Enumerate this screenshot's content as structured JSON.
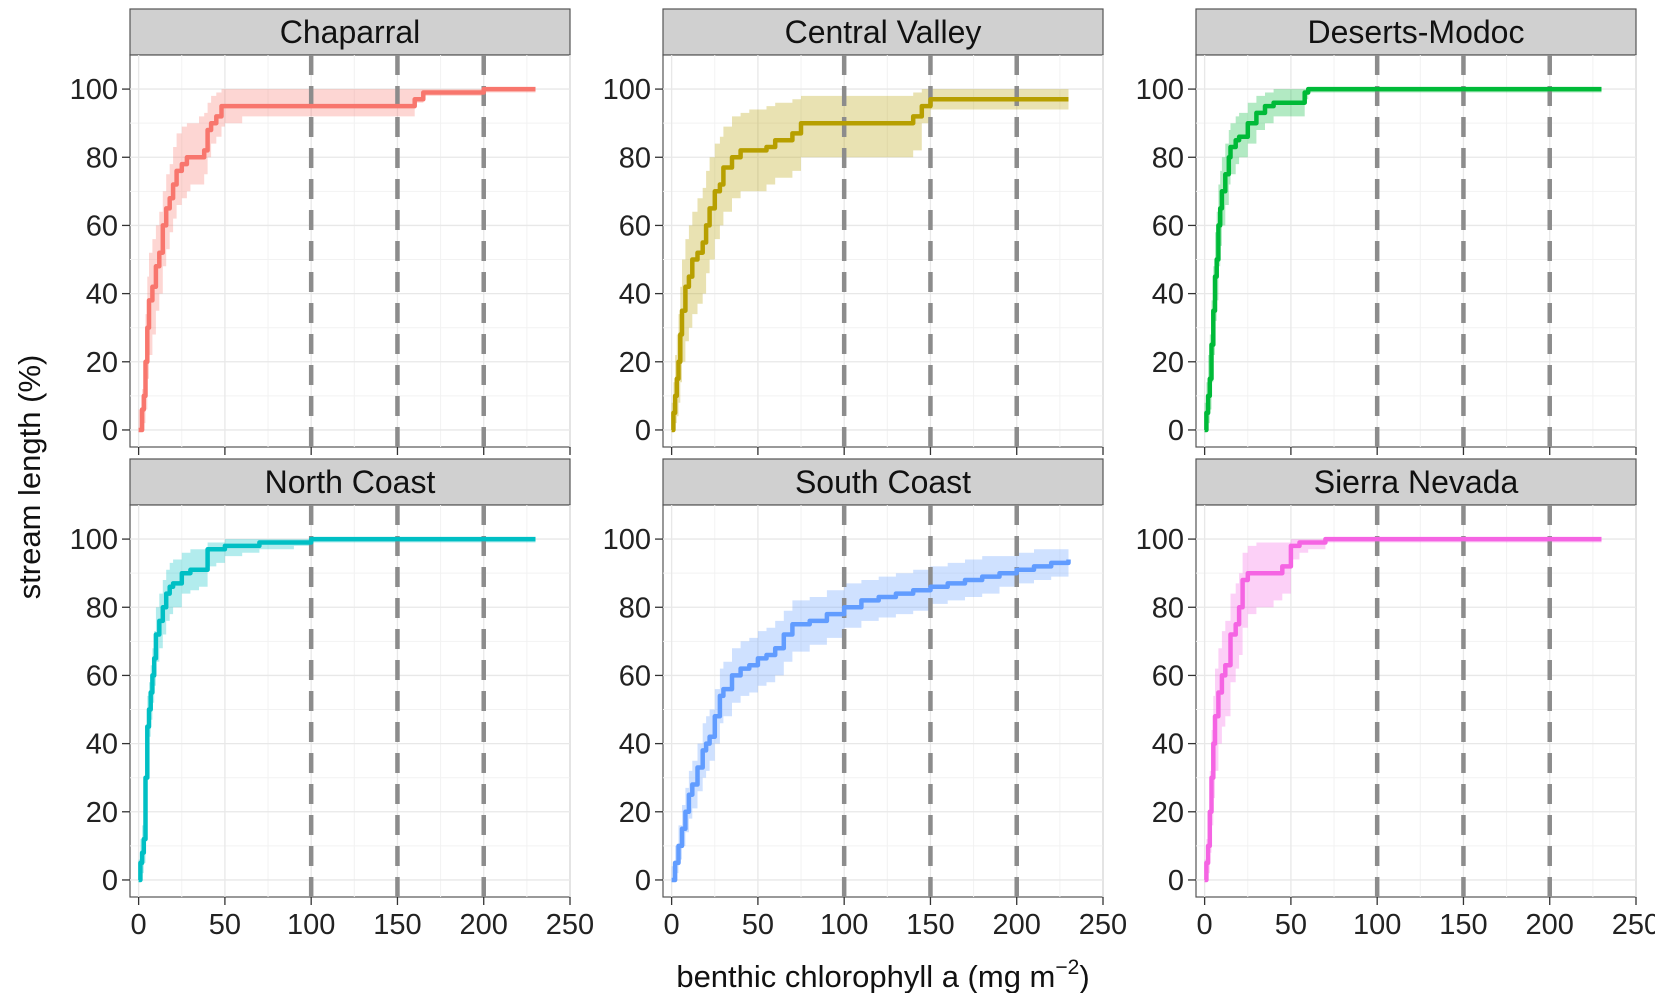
{
  "chart_data": {
    "type": "line",
    "layout": "facet grid, 2 rows x 3 columns, shared axes",
    "ylabel": "stream length (%)",
    "xlabel": {
      "text": "benthic chlorophyll a (mg m",
      "superscript": "−2",
      "suffix": ")"
    },
    "xlim": [
      -5,
      250
    ],
    "ylim": [
      -5,
      110
    ],
    "xticks": [
      0,
      50,
      100,
      150,
      200,
      250
    ],
    "yticks": [
      0,
      20,
      40,
      60,
      80,
      100
    ],
    "reference_lines": [
      100,
      150,
      200
    ],
    "reference_line_color": "#8c8c8c",
    "grid": true,
    "panel_background": "#ffffff",
    "gridline_color": "#e8e8e8",
    "strip_color": "#d0d0d0",
    "band": "shaded confidence band around each curve",
    "panels": [
      {
        "name": "Chaparral",
        "color": "#f8766d",
        "x": [
          0,
          2,
          3,
          4,
          5,
          6,
          8,
          10,
          12,
          14,
          16,
          18,
          20,
          22,
          25,
          28,
          30,
          35,
          38,
          40,
          42,
          45,
          48,
          50,
          60,
          80,
          100,
          120,
          150,
          160,
          165,
          180,
          200,
          230
        ],
        "y": [
          0,
          6,
          10,
          20,
          30,
          38,
          42,
          48,
          52,
          60,
          65,
          68,
          72,
          76,
          78,
          80,
          80,
          80,
          82,
          88,
          90,
          92,
          95,
          95,
          95,
          95,
          95,
          95,
          95,
          97,
          99,
          99,
          100,
          100
        ],
        "lower": [
          0,
          0,
          2,
          6,
          15,
          22,
          28,
          35,
          40,
          48,
          53,
          58,
          62,
          66,
          68,
          70,
          72,
          72,
          75,
          80,
          84,
          86,
          89,
          90,
          92,
          92,
          92,
          92,
          92,
          96,
          98,
          98,
          99,
          99
        ],
        "upper": [
          6,
          12,
          20,
          34,
          45,
          52,
          56,
          60,
          64,
          70,
          75,
          78,
          83,
          87,
          89,
          90,
          90,
          92,
          93,
          96,
          98,
          99,
          100,
          100,
          100,
          100,
          100,
          100,
          100,
          100,
          100,
          100,
          100,
          100
        ]
      },
      {
        "name": "Central Valley",
        "color": "#b79f00",
        "x": [
          0,
          1,
          2,
          3,
          4,
          5,
          6,
          8,
          10,
          12,
          15,
          18,
          20,
          22,
          25,
          28,
          30,
          35,
          40,
          45,
          50,
          55,
          60,
          65,
          70,
          75,
          80,
          100,
          130,
          140,
          145,
          150,
          170,
          200,
          230
        ],
        "y": [
          0,
          5,
          10,
          15,
          20,
          28,
          35,
          42,
          45,
          50,
          52,
          55,
          60,
          65,
          70,
          72,
          77,
          80,
          82,
          82,
          82,
          83,
          85,
          85,
          87,
          90,
          90,
          90,
          90,
          92,
          95,
          97,
          97,
          97,
          97
        ],
        "lower": [
          0,
          0,
          2,
          4,
          8,
          14,
          20,
          26,
          30,
          34,
          37,
          40,
          46,
          50,
          56,
          60,
          64,
          68,
          70,
          70,
          70,
          72,
          74,
          74,
          76,
          80,
          80,
          80,
          80,
          82,
          90,
          94,
          94,
          94,
          94
        ],
        "upper": [
          8,
          14,
          22,
          28,
          34,
          42,
          50,
          56,
          60,
          64,
          68,
          71,
          76,
          80,
          84,
          86,
          89,
          92,
          93,
          94,
          94,
          95,
          96,
          96,
          97,
          98,
          98,
          98,
          98,
          99,
          100,
          100,
          100,
          100,
          100
        ]
      },
      {
        "name": "Deserts-Modoc",
        "color": "#00ba38",
        "x": [
          0,
          1,
          2,
          3,
          4,
          5,
          6,
          7,
          8,
          9,
          10,
          12,
          14,
          15,
          18,
          20,
          22,
          25,
          30,
          35,
          40,
          55,
          58,
          60,
          100,
          150,
          200,
          230
        ],
        "y": [
          0,
          5,
          10,
          15,
          25,
          35,
          45,
          50,
          60,
          65,
          70,
          75,
          80,
          83,
          85,
          86,
          86,
          90,
          93,
          95,
          96,
          96,
          99,
          100,
          100,
          100,
          100,
          100
        ],
        "lower": [
          0,
          0,
          2,
          6,
          14,
          22,
          32,
          38,
          48,
          54,
          60,
          66,
          72,
          75,
          78,
          80,
          80,
          84,
          88,
          90,
          92,
          92,
          97,
          99,
          99,
          99,
          99,
          99
        ],
        "upper": [
          8,
          14,
          22,
          28,
          38,
          48,
          58,
          64,
          72,
          76,
          80,
          84,
          88,
          90,
          92,
          93,
          93,
          96,
          98,
          99,
          100,
          100,
          100,
          100,
          100,
          100,
          100,
          100
        ]
      },
      {
        "name": "North Coast",
        "color": "#00bfc4",
        "x": [
          0,
          1,
          2,
          3,
          4,
          5,
          6,
          7,
          8,
          9,
          10,
          12,
          14,
          16,
          18,
          20,
          25,
          30,
          35,
          40,
          45,
          50,
          60,
          70,
          90,
          100,
          150,
          200,
          230
        ],
        "y": [
          0,
          5,
          8,
          12,
          30,
          45,
          50,
          55,
          60,
          65,
          72,
          76,
          80,
          84,
          86,
          87,
          90,
          91,
          91,
          97,
          97,
          98,
          98,
          99,
          99,
          100,
          100,
          100,
          100
        ],
        "lower": [
          0,
          0,
          2,
          5,
          20,
          36,
          42,
          47,
          52,
          57,
          64,
          68,
          72,
          76,
          78,
          80,
          84,
          85,
          86,
          92,
          93,
          95,
          96,
          97,
          98,
          99,
          99,
          99,
          99
        ],
        "upper": [
          6,
          12,
          16,
          20,
          40,
          54,
          58,
          63,
          68,
          73,
          80,
          84,
          88,
          91,
          93,
          94,
          96,
          97,
          97,
          99,
          99,
          100,
          100,
          100,
          100,
          100,
          100,
          100,
          100
        ]
      },
      {
        "name": "South Coast",
        "color": "#619cff",
        "x": [
          0,
          2,
          4,
          6,
          8,
          10,
          12,
          15,
          18,
          20,
          22,
          25,
          28,
          30,
          35,
          40,
          45,
          50,
          55,
          60,
          65,
          70,
          80,
          90,
          100,
          110,
          120,
          130,
          140,
          150,
          160,
          170,
          180,
          190,
          200,
          210,
          220,
          230
        ],
        "y": [
          0,
          5,
          10,
          15,
          20,
          25,
          28,
          33,
          38,
          40,
          42,
          48,
          54,
          56,
          60,
          62,
          63,
          65,
          66,
          68,
          72,
          75,
          76,
          78,
          80,
          82,
          83,
          84,
          85,
          86,
          87,
          88,
          89,
          90,
          91,
          92,
          93,
          94
        ],
        "lower": [
          0,
          2,
          6,
          10,
          14,
          18,
          21,
          26,
          30,
          32,
          35,
          40,
          46,
          48,
          52,
          54,
          55,
          57,
          58,
          60,
          64,
          67,
          69,
          71,
          74,
          76,
          77,
          78,
          79,
          81,
          82,
          83,
          84,
          86,
          87,
          88,
          89,
          90
        ],
        "upper": [
          4,
          10,
          16,
          22,
          27,
          32,
          35,
          40,
          46,
          48,
          50,
          56,
          62,
          64,
          68,
          70,
          71,
          73,
          74,
          76,
          79,
          82,
          83,
          85,
          87,
          88,
          89,
          90,
          91,
          92,
          93,
          94,
          95,
          95,
          96,
          97,
          97,
          98
        ]
      },
      {
        "name": "Sierra Nevada",
        "color": "#f564e3",
        "x": [
          0,
          1,
          2,
          3,
          4,
          5,
          6,
          8,
          10,
          12,
          15,
          18,
          20,
          22,
          25,
          30,
          40,
          45,
          50,
          55,
          60,
          65,
          70,
          100,
          150,
          200,
          230
        ],
        "y": [
          0,
          5,
          10,
          20,
          30,
          40,
          48,
          55,
          60,
          63,
          72,
          75,
          80,
          88,
          90,
          90,
          90,
          92,
          98,
          99,
          99,
          99,
          100,
          100,
          100,
          100,
          100
        ],
        "lower": [
          0,
          0,
          2,
          8,
          16,
          24,
          32,
          40,
          45,
          48,
          58,
          62,
          66,
          74,
          78,
          80,
          82,
          84,
          94,
          96,
          97,
          97,
          99,
          99,
          99,
          99,
          99
        ],
        "upper": [
          6,
          12,
          20,
          32,
          44,
          54,
          62,
          68,
          73,
          76,
          84,
          87,
          90,
          96,
          98,
          99,
          99,
          99,
          100,
          100,
          100,
          100,
          100,
          100,
          100,
          100,
          100
        ]
      }
    ]
  }
}
